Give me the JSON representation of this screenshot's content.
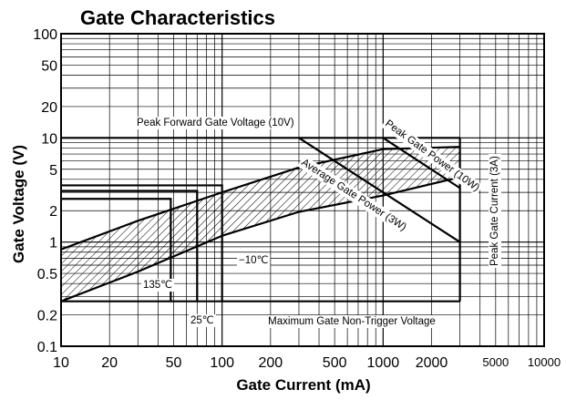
{
  "chart_data": {
    "type": "line",
    "title": "Gate Characteristics",
    "xlabel": "Gate Current (mA)",
    "ylabel": "Gate Voltage (V)",
    "x_scale": "log",
    "y_scale": "log",
    "xlim": [
      10,
      10000
    ],
    "ylim": [
      0.1,
      100
    ],
    "grid": true,
    "x_ticks": [
      {
        "value": 10,
        "label": "10"
      },
      {
        "value": 20,
        "label": "20"
      },
      {
        "value": 50,
        "label": "50"
      },
      {
        "value": 100,
        "label": "100"
      },
      {
        "value": 200,
        "label": "200"
      },
      {
        "value": 500,
        "label": "500"
      },
      {
        "value": 1000,
        "label": "1000"
      },
      {
        "value": 2000,
        "label": "2000"
      },
      {
        "value": 5000,
        "label": "5000"
      },
      {
        "value": 10000,
        "label": "10000"
      }
    ],
    "y_ticks": [
      {
        "value": 0.1,
        "label": "0.1"
      },
      {
        "value": 0.2,
        "label": "0.2"
      },
      {
        "value": 0.5,
        "label": "0.5"
      },
      {
        "value": 1,
        "label": "1"
      },
      {
        "value": 2,
        "label": "2"
      },
      {
        "value": 5,
        "label": "5"
      },
      {
        "value": 10,
        "label": "10"
      },
      {
        "value": 20,
        "label": "20"
      },
      {
        "value": 50,
        "label": "50"
      },
      {
        "value": 100,
        "label": "100"
      }
    ],
    "series": [
      {
        "id": "peak-forward-gate-voltage",
        "x": [
          10,
          3000
        ],
        "y": [
          10,
          10
        ]
      },
      {
        "id": "peak-gate-current",
        "x": [
          3000,
          3000
        ],
        "y": [
          0.27,
          10
        ]
      },
      {
        "id": "max-gate-non-trigger-voltage",
        "x": [
          10,
          3000
        ],
        "y": [
          0.27,
          0.27
        ]
      },
      {
        "id": "peak-gate-power",
        "x": [
          1000,
          3000
        ],
        "y": [
          10,
          3.3
        ]
      },
      {
        "id": "average-gate-power",
        "x": [
          300,
          3000
        ],
        "y": [
          10,
          1
        ]
      },
      {
        "id": "gate-characteristic-upper",
        "x": [
          10,
          30,
          100,
          300,
          1000,
          3000
        ],
        "y": [
          0.85,
          1.6,
          3.0,
          5.2,
          7.8,
          8.2
        ]
      },
      {
        "id": "gate-characteristic-lower",
        "x": [
          10,
          30,
          100,
          300,
          1000,
          3000
        ],
        "y": [
          0.27,
          0.52,
          1.15,
          1.95,
          2.8,
          4.2
        ]
      },
      {
        "id": "trigger-135c",
        "x": [
          10,
          48,
          48
        ],
        "y": [
          2.6,
          2.6,
          0.27
        ]
      },
      {
        "id": "trigger-25c",
        "x": [
          10,
          70,
          70
        ],
        "y": [
          3.1,
          3.1,
          0.27
        ]
      },
      {
        "id": "trigger-minus10c",
        "x": [
          10,
          100,
          100
        ],
        "y": [
          3.5,
          3.5,
          0.27
        ]
      }
    ],
    "annotations": [
      {
        "id": "peak-forward-gate-voltage",
        "text": "Peak Forward Gate Voltage (10V)"
      },
      {
        "id": "peak-gate-power",
        "text": "Peak Gate Power (10W)"
      },
      {
        "id": "average-gate-power",
        "text": "Average Gate Power (3W)"
      },
      {
        "id": "peak-gate-current",
        "text": "Peak Gate Current (3A)"
      },
      {
        "id": "max-gate-non-trigger-voltage",
        "text": "Maximum Gate Non-Trigger Voltage"
      },
      {
        "id": "temp-135c",
        "text": "135℃"
      },
      {
        "id": "temp-25c",
        "text": "25℃"
      },
      {
        "id": "temp-minus10c",
        "text": "−10℃"
      }
    ]
  }
}
